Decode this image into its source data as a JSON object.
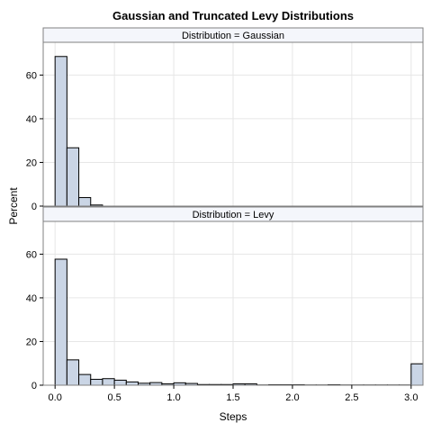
{
  "chart_data": {
    "type": "bar",
    "title": "Gaussian and Truncated Levy Distributions",
    "xlabel": "Steps",
    "ylabel": "Percent",
    "xlim": [
      -0.1,
      3.1
    ],
    "ylim": [
      0,
      75
    ],
    "x_ticks": [
      "0.0",
      "0.5",
      "1.0",
      "1.5",
      "2.0",
      "2.5",
      "3.0"
    ],
    "x_tick_values": [
      0.0,
      0.5,
      1.0,
      1.5,
      2.0,
      2.5,
      3.0
    ],
    "y_ticks": [
      "0",
      "20",
      "40",
      "60"
    ],
    "y_tick_values": [
      0,
      20,
      40,
      60
    ],
    "bin_width": 0.1,
    "grid": true,
    "panels": [
      {
        "label": "Distribution = Gaussian",
        "bins": [
          0.05,
          0.15,
          0.25,
          0.35
        ],
        "values": [
          68.5,
          26.7,
          3.9,
          0.5
        ]
      },
      {
        "label": "Distribution = Levy",
        "bins": [
          0.05,
          0.15,
          0.25,
          0.35,
          0.45,
          0.55,
          0.65,
          0.75,
          0.85,
          0.95,
          1.05,
          1.15,
          1.25,
          1.35,
          1.45,
          1.55,
          1.65,
          1.75,
          1.85,
          1.95,
          2.05,
          2.15,
          2.25,
          2.35,
          2.45,
          2.55,
          2.65,
          2.75,
          2.85,
          2.95,
          3.05
        ],
        "values": [
          57.7,
          11.6,
          4.9,
          2.7,
          3.0,
          2.3,
          1.5,
          0.9,
          1.2,
          0.6,
          1.1,
          0.8,
          0.3,
          0.3,
          0.3,
          0.6,
          0.6,
          0.1,
          0.2,
          0.2,
          0.2,
          0.1,
          0.1,
          0.2,
          0.1,
          0.1,
          0.1,
          0.1,
          0.1,
          0.1,
          9.8
        ]
      }
    ]
  }
}
